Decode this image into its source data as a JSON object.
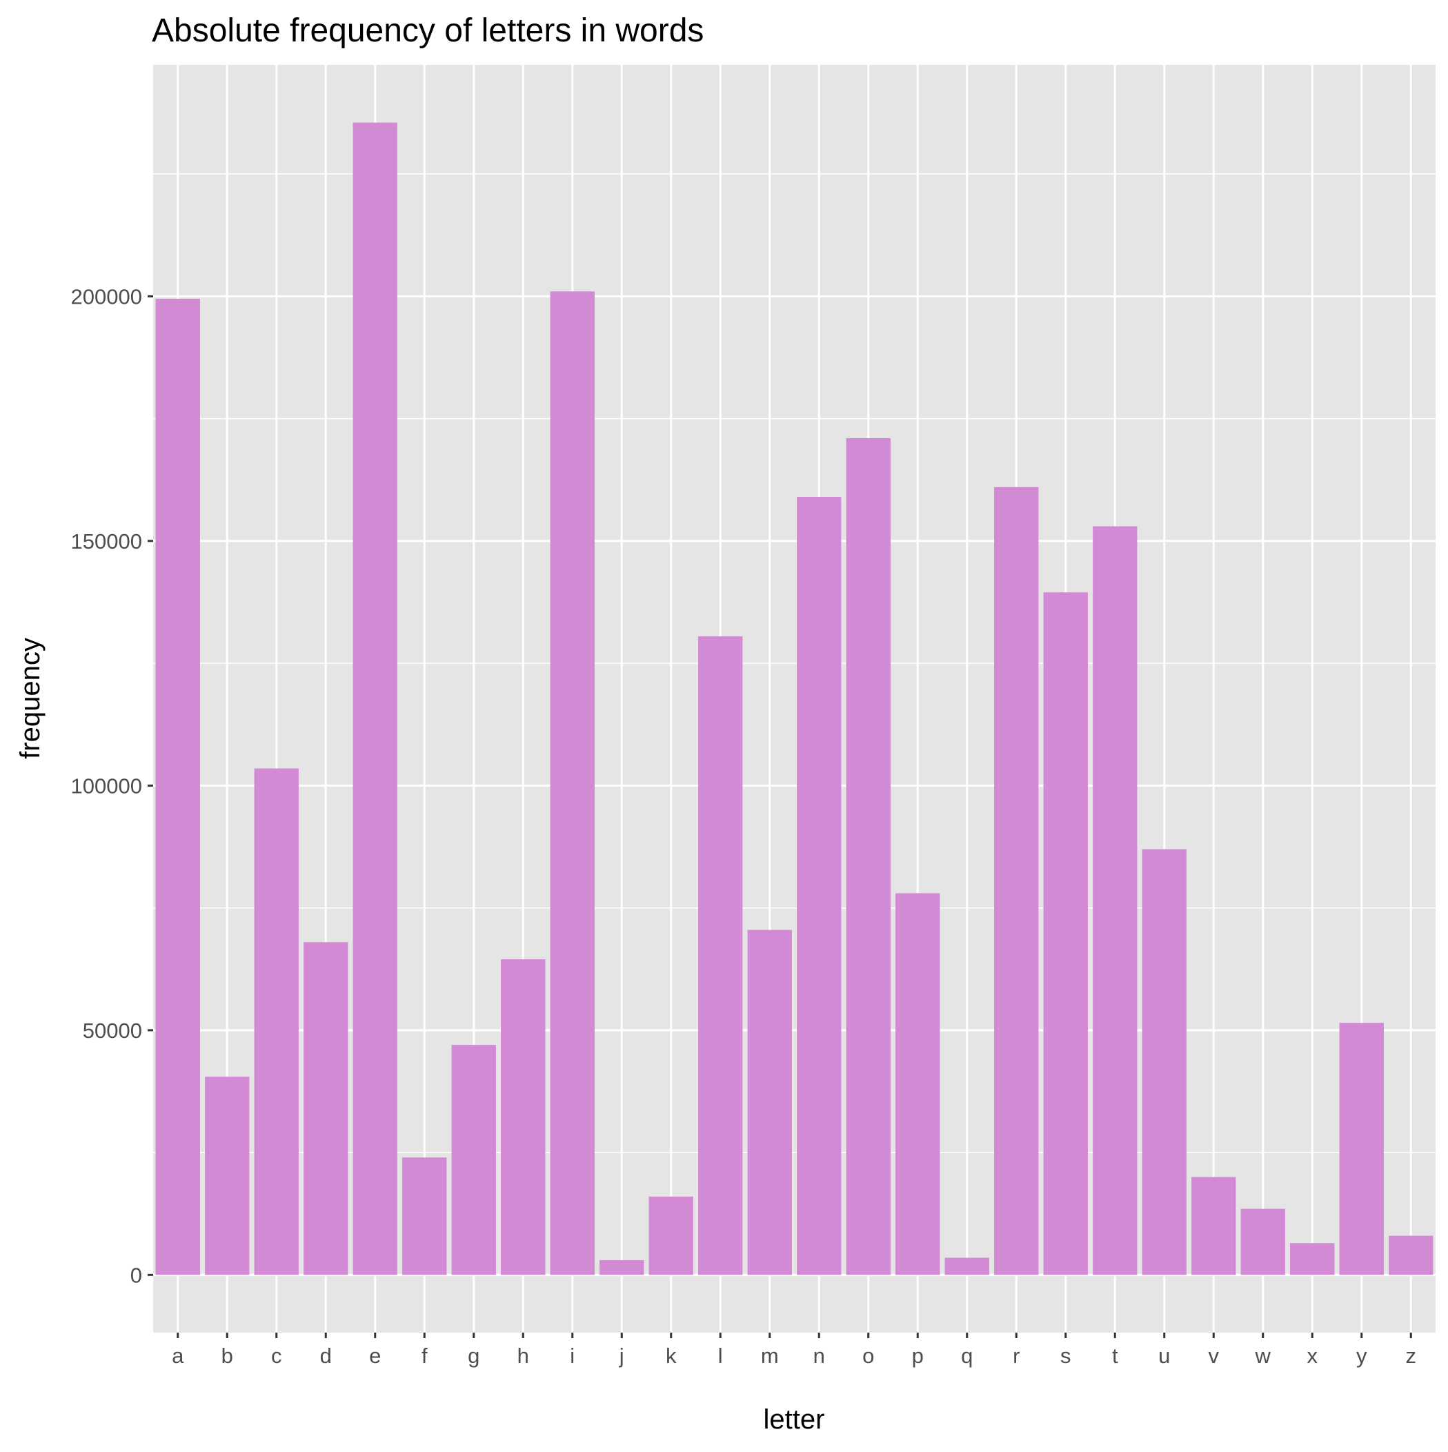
{
  "chart_data": {
    "type": "bar",
    "title": "Absolute frequency of letters in words",
    "xlabel": "letter",
    "ylabel": "frequency",
    "categories": [
      "a",
      "b",
      "c",
      "d",
      "e",
      "f",
      "g",
      "h",
      "i",
      "j",
      "k",
      "l",
      "m",
      "n",
      "o",
      "p",
      "q",
      "r",
      "s",
      "t",
      "u",
      "v",
      "w",
      "x",
      "y",
      "z"
    ],
    "values": [
      199500,
      40500,
      103500,
      68000,
      235500,
      24000,
      47000,
      64500,
      201000,
      3000,
      16000,
      130500,
      70500,
      159000,
      171000,
      78000,
      3500,
      161000,
      139500,
      153000,
      87000,
      20000,
      13500,
      6500,
      51500,
      8000
    ],
    "ylim": [
      -11800,
      247300
    ],
    "yticks": [
      0,
      50000,
      100000,
      150000,
      200000
    ],
    "ytick_labels": [
      "0",
      "50000",
      "100000",
      "150000",
      "200000"
    ],
    "grid": true,
    "colors": {
      "bar": "#d28ad5",
      "panel": "#e5e5e5",
      "grid": "#ffffff",
      "tick": "#333333",
      "text": "#000000"
    }
  }
}
